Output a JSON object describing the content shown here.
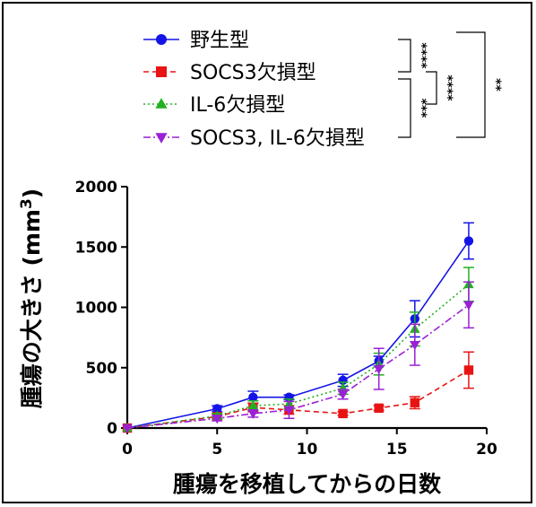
{
  "chart_data": {
    "type": "line",
    "xlabel": "腫瘍を移植してからの日数",
    "ylabel": "腫瘍の大きさ (mm",
    "ylabel_superscript": "3",
    "ylabel_close": ")",
    "xlim": [
      0,
      20
    ],
    "ylim": [
      0,
      2000
    ],
    "x_ticks": [
      0,
      5,
      10,
      15,
      20
    ],
    "y_ticks": [
      0,
      500,
      1000,
      1500,
      2000
    ],
    "x_tick_labels": [
      "0",
      "5",
      "10",
      "15",
      "20"
    ],
    "y_tick_labels": [
      "0",
      "500",
      "1000",
      "1500",
      "2000"
    ],
    "legend_position": "top",
    "grid": false,
    "series": [
      {
        "name": "野生型",
        "color": "#1414e6",
        "marker": "circle",
        "line_style": "solid",
        "x": [
          0,
          5,
          7,
          9,
          12,
          14,
          16,
          19
        ],
        "y": [
          0,
          160,
          255,
          255,
          395,
          555,
          905,
          1550
        ],
        "error": [
          0,
          25,
          50,
          20,
          50,
          40,
          150,
          150
        ]
      },
      {
        "name": "SOCS3欠損型",
        "color": "#e81414",
        "marker": "square",
        "line_style": "dashed",
        "x": [
          0,
          5,
          7,
          9,
          12,
          14,
          16,
          19
        ],
        "y": [
          0,
          95,
          170,
          150,
          120,
          165,
          210,
          480
        ],
        "error": [
          0,
          20,
          35,
          35,
          15,
          20,
          50,
          150
        ]
      },
      {
        "name": "IL-6欠損型",
        "color": "#20b020",
        "marker": "triangle-up",
        "line_style": "dotted",
        "x": [
          0,
          5,
          7,
          9,
          12,
          14,
          16,
          19
        ],
        "y": [
          0,
          100,
          185,
          200,
          330,
          530,
          820,
          1190
        ],
        "error": [
          0,
          20,
          40,
          40,
          50,
          90,
          140,
          140
        ]
      },
      {
        "name": "SOCS3, IL-6欠損型",
        "color": "#9a1fd6",
        "marker": "triangle-down",
        "line_style": "dashdot",
        "x": [
          0,
          5,
          7,
          9,
          12,
          14,
          16,
          19
        ],
        "y": [
          0,
          80,
          120,
          150,
          280,
          490,
          690,
          1020
        ],
        "error": [
          0,
          20,
          30,
          70,
          40,
          170,
          170,
          190
        ]
      }
    ],
    "significance": [
      {
        "label": "****",
        "pair": [
          "野生型",
          "SOCS3欠損型"
        ]
      },
      {
        "label": "***",
        "pair": [
          "IL-6欠損型",
          "SOCS3, IL-6欠損型"
        ]
      },
      {
        "label": "****",
        "pair": [
          "SOCS3欠損型",
          "IL-6欠損型"
        ]
      },
      {
        "label": "**",
        "pair": [
          "野生型",
          "SOCS3, IL-6欠損型"
        ]
      }
    ]
  }
}
